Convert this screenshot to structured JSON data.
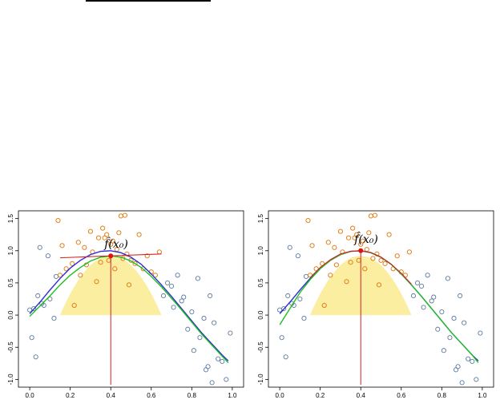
{
  "chart_data": [
    {
      "type": "scatter",
      "panel": "left",
      "annotation": "f̂(x₀)",
      "x0": 0.4,
      "fhat_x0": 0.92,
      "xlim": [
        -0.04,
        1.04
      ],
      "ylim": [
        -1.12,
        1.62
      ],
      "x_ticks": [
        "0.0",
        "0.2",
        "0.4",
        "0.6",
        "0.8",
        "1.0"
      ],
      "y_ticks": [
        "-1.0",
        "-0.5",
        "0.0",
        "0.5",
        "1.0",
        "1.5"
      ],
      "kernel_window": [
        0.15,
        0.65
      ],
      "series": [
        {
          "role": "true-function",
          "color": "#2e2ed6",
          "x": [
            0.0,
            0.05,
            0.1,
            0.15,
            0.2,
            0.25,
            0.3,
            0.35,
            0.4,
            0.45,
            0.5,
            0.55,
            0.6,
            0.65,
            0.7,
            0.75,
            0.8,
            0.85,
            0.9,
            0.95,
            0.98
          ],
          "y": [
            0.02,
            0.2,
            0.39,
            0.57,
            0.73,
            0.85,
            0.94,
            0.99,
            1.0,
            0.97,
            0.9,
            0.79,
            0.64,
            0.47,
            0.29,
            0.1,
            -0.09,
            -0.28,
            -0.45,
            -0.62,
            -0.71
          ]
        },
        {
          "role": "fitted-curve",
          "color": "#1fbf1f",
          "x": [
            0.0,
            0.05,
            0.1,
            0.15,
            0.2,
            0.25,
            0.3,
            0.35,
            0.4,
            0.45,
            0.5,
            0.55,
            0.6,
            0.65,
            0.7,
            0.75,
            0.8,
            0.85,
            0.9,
            0.95,
            0.98
          ],
          "y": [
            -0.02,
            0.14,
            0.3,
            0.47,
            0.62,
            0.74,
            0.84,
            0.9,
            0.92,
            0.9,
            0.84,
            0.74,
            0.6,
            0.44,
            0.26,
            0.08,
            -0.11,
            -0.3,
            -0.47,
            -0.64,
            -0.74
          ]
        },
        {
          "role": "local-fit-line",
          "color": "#d42020",
          "x": [
            0.15,
            0.65
          ],
          "y": [
            0.89,
            0.95
          ]
        }
      ],
      "points_in_window": {
        "color": "#e0801a",
        "x": [
          0.14,
          0.15,
          0.16,
          0.18,
          0.21,
          0.22,
          0.24,
          0.25,
          0.27,
          0.28,
          0.3,
          0.31,
          0.33,
          0.34,
          0.35,
          0.36,
          0.37,
          0.38,
          0.39,
          0.4,
          0.41,
          0.42,
          0.43,
          0.44,
          0.45,
          0.46,
          0.47,
          0.48,
          0.49,
          0.5,
          0.52,
          0.54,
          0.56,
          0.58,
          0.6,
          0.62,
          0.64
        ],
        "y": [
          1.47,
          0.62,
          1.08,
          0.72,
          0.8,
          0.15,
          1.13,
          0.62,
          1.05,
          0.78,
          1.3,
          0.98,
          0.52,
          1.2,
          0.82,
          1.35,
          1.2,
          1.25,
          0.85,
          1.1,
          1.15,
          0.72,
          1.02,
          1.28,
          1.54,
          0.88,
          1.55,
          0.95,
          0.47,
          0.85,
          0.8,
          1.25,
          0.72,
          0.92,
          0.67,
          0.62,
          0.98
        ]
      },
      "points_outside": {
        "color": "#5a7aa0",
        "x": [
          0.0,
          0.01,
          0.02,
          0.03,
          0.04,
          0.05,
          0.06,
          0.07,
          0.09,
          0.1,
          0.12,
          0.13,
          0.66,
          0.68,
          0.7,
          0.71,
          0.73,
          0.75,
          0.76,
          0.78,
          0.8,
          0.81,
          0.83,
          0.84,
          0.86,
          0.87,
          0.88,
          0.89,
          0.9,
          0.91,
          0.93,
          0.95,
          0.97,
          0.99
        ],
        "y": [
          0.08,
          -0.35,
          0.1,
          -0.65,
          0.3,
          1.05,
          0.18,
          0.15,
          0.92,
          0.25,
          -0.05,
          0.6,
          0.3,
          0.5,
          0.45,
          0.12,
          0.62,
          0.22,
          0.28,
          -0.22,
          0.05,
          -0.55,
          0.57,
          -0.35,
          -0.05,
          -0.85,
          -0.8,
          0.3,
          -1.05,
          -0.12,
          -0.68,
          -0.72,
          -1.0,
          -0.28
        ]
      }
    },
    {
      "type": "scatter",
      "panel": "right",
      "annotation": "f̂(x₀)",
      "x0": 0.4,
      "fhat_x0": 1.0,
      "xlim": [
        -0.04,
        1.04
      ],
      "ylim": [
        -1.12,
        1.62
      ],
      "x_ticks": [
        "0.0",
        "0.2",
        "0.4",
        "0.6",
        "0.8",
        "1.0"
      ],
      "y_ticks": [
        "-1.0",
        "-0.5",
        "0.0",
        "0.5",
        "1.0",
        "1.5"
      ],
      "kernel_window": [
        0.15,
        0.65
      ],
      "series": [
        {
          "role": "true-function",
          "color": "#2e2ed6",
          "x": [
            0.0,
            0.05,
            0.1,
            0.15,
            0.2,
            0.25,
            0.3,
            0.35,
            0.4,
            0.45,
            0.5,
            0.55,
            0.6,
            0.65,
            0.7,
            0.75,
            0.8,
            0.85,
            0.9,
            0.95,
            0.98
          ],
          "y": [
            0.02,
            0.2,
            0.39,
            0.57,
            0.73,
            0.85,
            0.94,
            0.99,
            1.0,
            0.97,
            0.9,
            0.79,
            0.64,
            0.47,
            0.29,
            0.1,
            -0.09,
            -0.28,
            -0.45,
            -0.62,
            -0.71
          ]
        },
        {
          "role": "fitted-curve",
          "color": "#1fbf1f",
          "x": [
            0.0,
            0.05,
            0.1,
            0.15,
            0.2,
            0.25,
            0.3,
            0.35,
            0.4,
            0.45,
            0.5,
            0.55,
            0.6,
            0.65,
            0.7,
            0.75,
            0.8,
            0.85,
            0.9,
            0.95,
            0.98
          ],
          "y": [
            -0.15,
            0.1,
            0.35,
            0.55,
            0.72,
            0.85,
            0.94,
            0.99,
            1.0,
            0.97,
            0.9,
            0.79,
            0.64,
            0.47,
            0.29,
            0.1,
            -0.09,
            -0.28,
            -0.45,
            -0.62,
            -0.74
          ]
        },
        {
          "role": "local-fit-line",
          "color": "#d42020",
          "x": [
            0.15,
            0.2,
            0.25,
            0.3,
            0.35,
            0.4,
            0.45,
            0.5,
            0.55,
            0.6,
            0.65
          ],
          "y": [
            0.58,
            0.74,
            0.86,
            0.95,
            0.99,
            1.0,
            0.97,
            0.9,
            0.79,
            0.65,
            0.48
          ]
        }
      ],
      "points_in_window": {
        "color": "#e0801a",
        "x": [
          0.14,
          0.15,
          0.16,
          0.18,
          0.21,
          0.22,
          0.24,
          0.25,
          0.27,
          0.28,
          0.3,
          0.31,
          0.33,
          0.34,
          0.35,
          0.36,
          0.37,
          0.38,
          0.39,
          0.4,
          0.41,
          0.42,
          0.43,
          0.44,
          0.45,
          0.46,
          0.47,
          0.48,
          0.49,
          0.5,
          0.52,
          0.54,
          0.56,
          0.58,
          0.6,
          0.62,
          0.64
        ],
        "y": [
          1.47,
          0.62,
          1.08,
          0.72,
          0.8,
          0.15,
          1.13,
          0.62,
          1.05,
          0.78,
          1.3,
          0.98,
          0.52,
          1.2,
          0.82,
          1.35,
          1.2,
          1.25,
          0.85,
          1.1,
          1.15,
          0.72,
          1.02,
          1.28,
          1.54,
          0.88,
          1.55,
          0.95,
          0.47,
          0.85,
          0.8,
          1.25,
          0.72,
          0.92,
          0.67,
          0.62,
          0.98
        ]
      },
      "points_outside": {
        "color": "#5a7aa0",
        "x": [
          0.0,
          0.01,
          0.02,
          0.03,
          0.04,
          0.05,
          0.06,
          0.07,
          0.09,
          0.1,
          0.12,
          0.13,
          0.66,
          0.68,
          0.7,
          0.71,
          0.73,
          0.75,
          0.76,
          0.78,
          0.8,
          0.81,
          0.83,
          0.84,
          0.86,
          0.87,
          0.88,
          0.89,
          0.9,
          0.91,
          0.93,
          0.95,
          0.97,
          0.99
        ],
        "y": [
          0.08,
          -0.35,
          0.1,
          -0.65,
          0.3,
          1.05,
          0.18,
          0.15,
          0.92,
          0.25,
          -0.05,
          0.6,
          0.3,
          0.5,
          0.45,
          0.12,
          0.62,
          0.22,
          0.28,
          -0.22,
          0.05,
          -0.55,
          0.57,
          -0.35,
          -0.05,
          -0.85,
          -0.8,
          0.3,
          -1.05,
          -0.12,
          -0.68,
          -0.72,
          -1.0,
          -0.28
        ]
      }
    }
  ],
  "colors": {
    "kernel_fill": "#fbeea0",
    "target_point": "#e01010",
    "vertical_line": "#d42020"
  }
}
